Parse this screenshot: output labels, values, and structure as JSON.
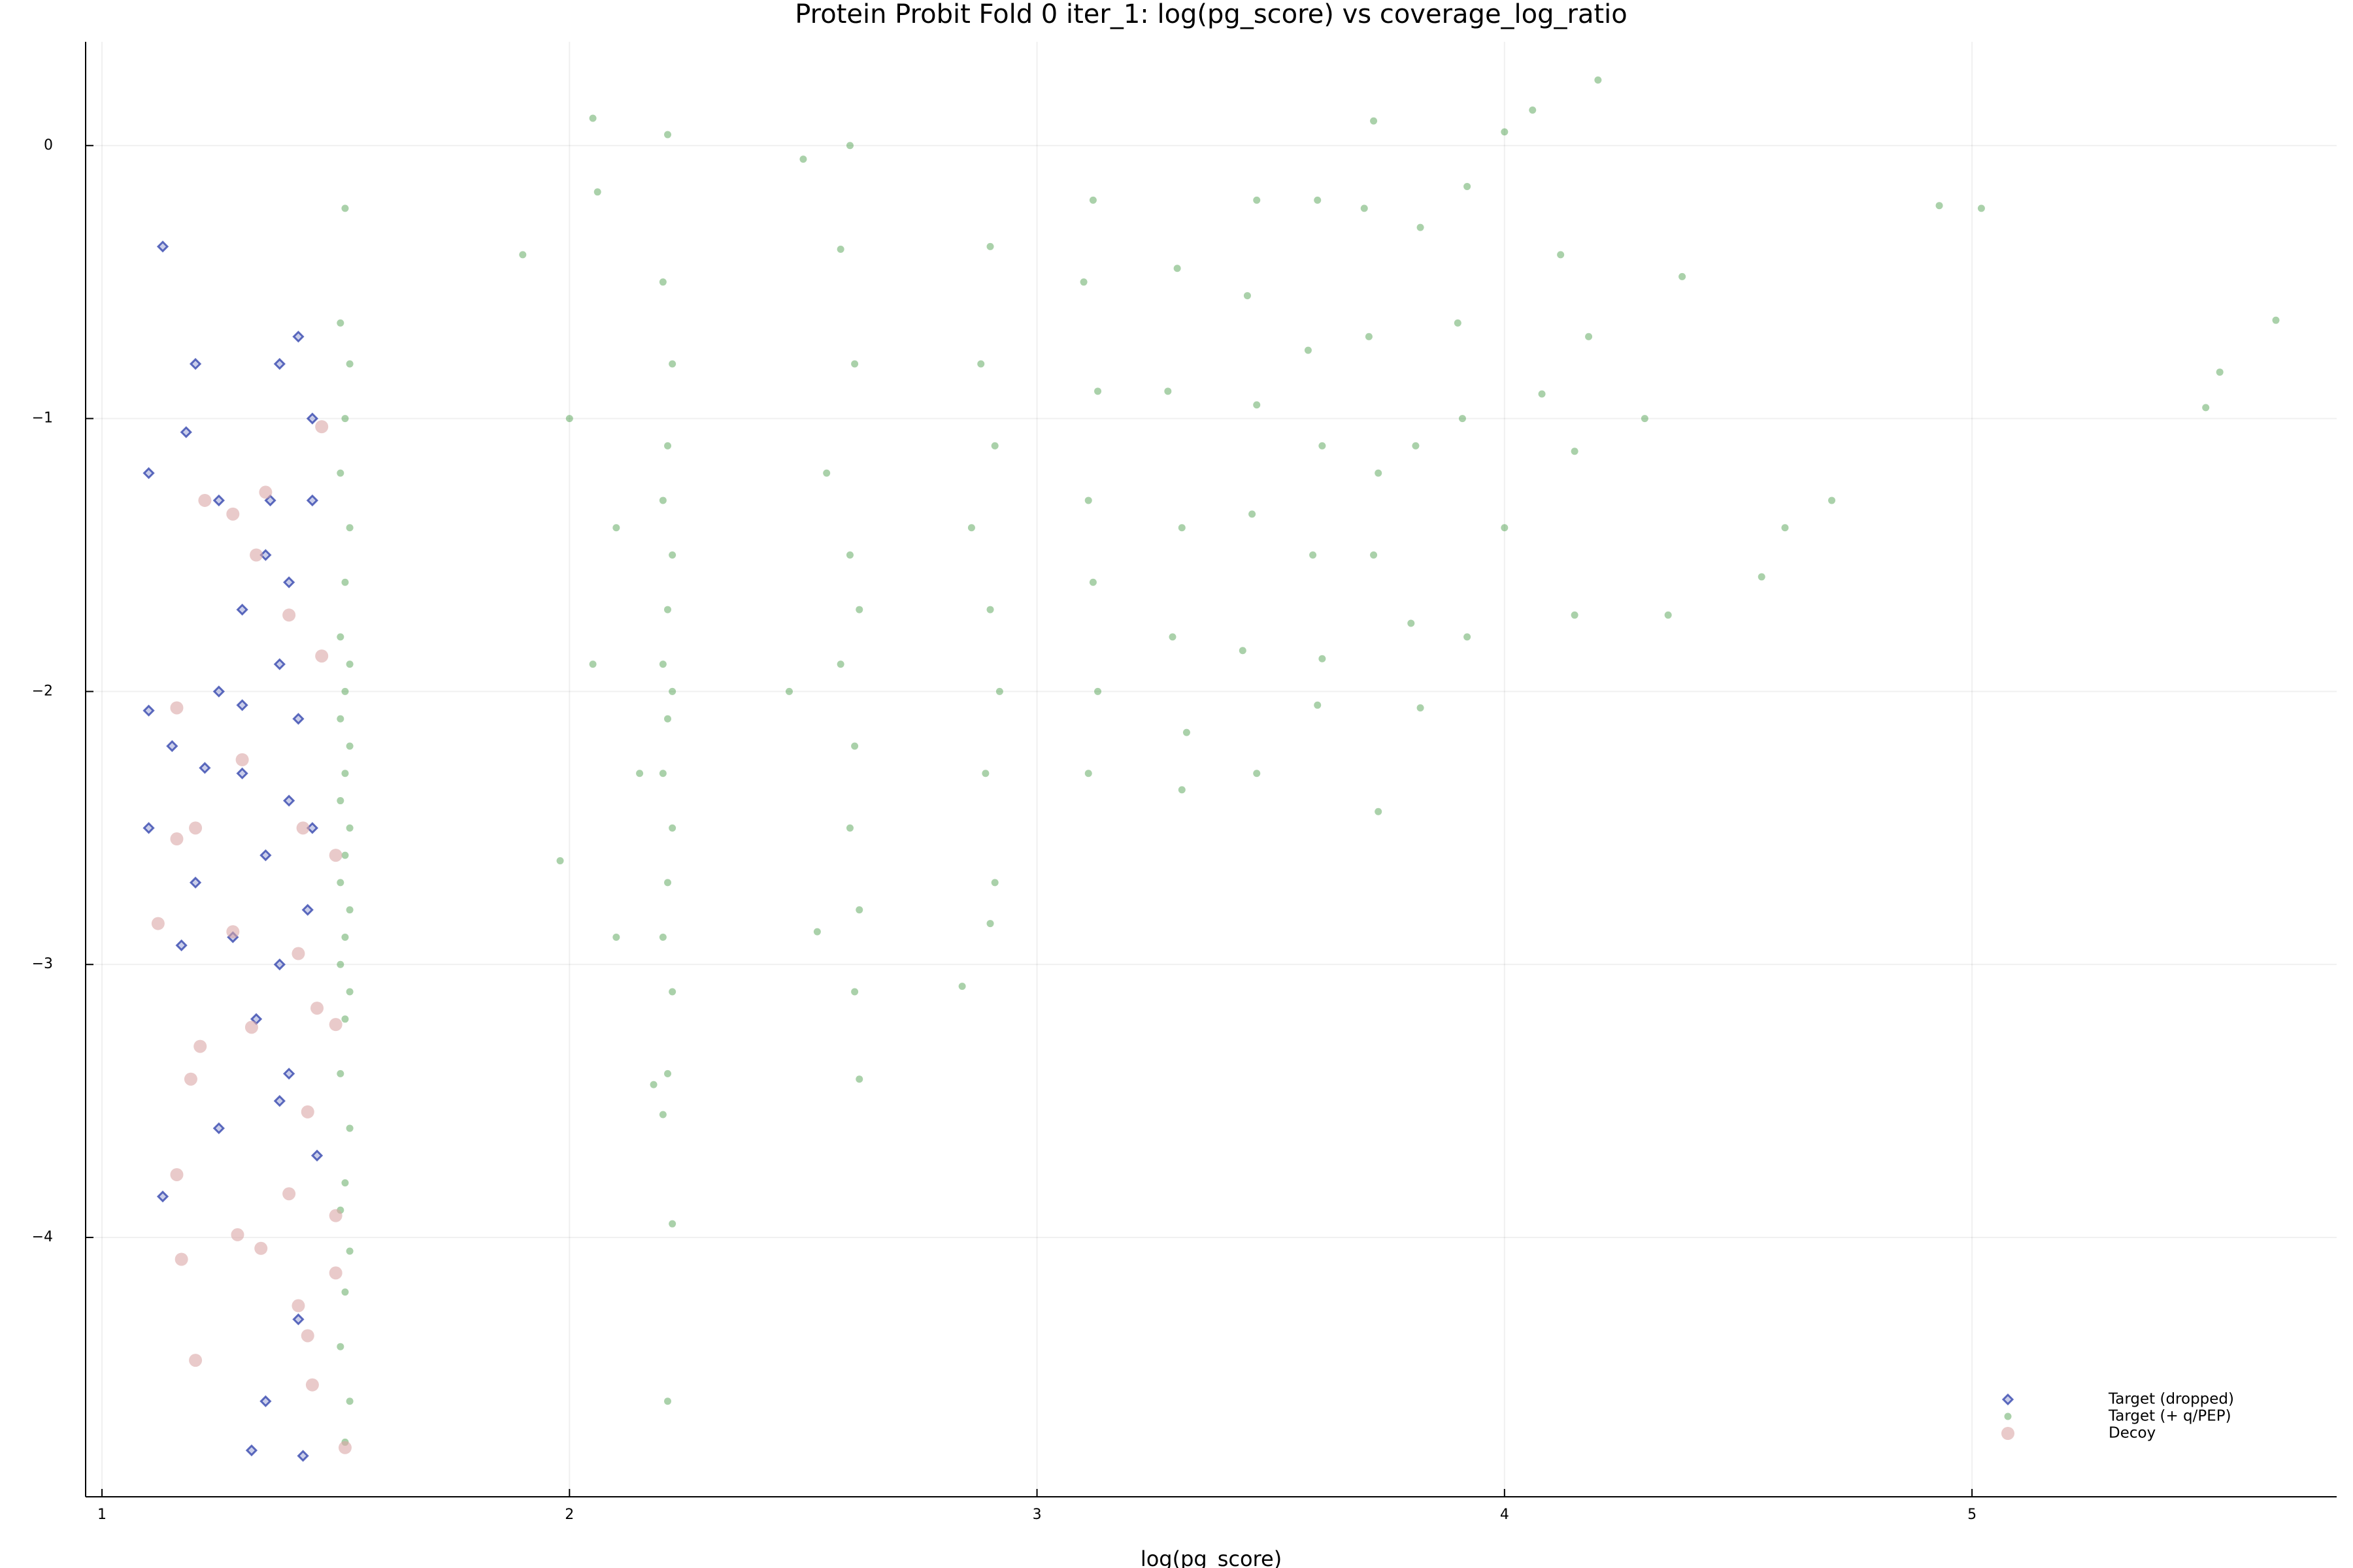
{
  "chart_data": {
    "type": "scatter",
    "title": "Protein Probit Fold 0 iter_1: log(pg_score) vs coverage_log_ratio",
    "xlabel": "log(pg_score)",
    "xlim": [
      0.965,
      5.78
    ],
    "ylim": [
      -4.95,
      0.38
    ],
    "xticks": [
      1,
      2,
      3,
      4,
      5
    ],
    "yticks": [
      {
        "value": -4,
        "label": "−4"
      },
      {
        "value": -3,
        "label": "−3"
      },
      {
        "value": -2,
        "label": "−2"
      },
      {
        "value": -1,
        "label": "−1"
      },
      0
    ],
    "grid": true,
    "legend": "bottom right",
    "series": [
      {
        "name": "Target (dropped)",
        "color": "#2a3caa",
        "marker": "diamond",
        "x": [
          1.13,
          1.2,
          1.18,
          1.1,
          1.25,
          1.38,
          1.42,
          1.35,
          1.4,
          1.45,
          1.3,
          1.38,
          1.42,
          1.25,
          1.15,
          1.1,
          1.3,
          1.4,
          1.35,
          1.45,
          1.2,
          1.28,
          1.38,
          1.44,
          1.17,
          1.33,
          1.4,
          1.25,
          1.13,
          1.38,
          1.46,
          1.42,
          1.35,
          1.43,
          1.32,
          1.1,
          1.22,
          1.36,
          1.45,
          1.3
        ],
        "y": [
          -0.37,
          -0.8,
          -1.05,
          -1.2,
          -1.3,
          -0.8,
          -0.7,
          -1.5,
          -1.6,
          -1.3,
          -1.7,
          -1.9,
          -2.1,
          -2.0,
          -2.2,
          -2.5,
          -2.3,
          -2.4,
          -2.6,
          -2.5,
          -2.7,
          -2.9,
          -3.0,
          -2.8,
          -2.93,
          -3.2,
          -3.4,
          -3.6,
          -3.85,
          -3.5,
          -3.7,
          -4.3,
          -4.6,
          -4.8,
          -4.78,
          -2.07,
          -2.28,
          -1.3,
          -1.0,
          -2.05
        ]
      },
      {
        "name": "Target (+ q/PEP)",
        "color": "#2a8c2a",
        "marker": "circle",
        "x": [
          1.52,
          1.51,
          1.53,
          1.52,
          1.51,
          1.53,
          1.52,
          1.51,
          1.53,
          1.52,
          1.51,
          1.53,
          1.52,
          1.51,
          1.53,
          1.52,
          1.51,
          1.53,
          1.52,
          1.51,
          1.53,
          1.52,
          1.51,
          1.53,
          1.52,
          1.51,
          1.53,
          1.52,
          1.51,
          1.53,
          1.52,
          2.21,
          2.2,
          2.22,
          2.21,
          2.2,
          2.22,
          2.21,
          2.2,
          2.22,
          2.21,
          2.2,
          2.22,
          2.21,
          2.2,
          2.22,
          2.21,
          2.2,
          2.22,
          2.21,
          2.05,
          2.06,
          1.9,
          2.0,
          2.1,
          2.05,
          2.15,
          1.98,
          2.1,
          2.18,
          2.6,
          2.58,
          2.61,
          2.55,
          2.6,
          2.62,
          2.58,
          2.61,
          2.6,
          2.62,
          2.61,
          2.62,
          2.5,
          2.47,
          2.53,
          2.9,
          2.88,
          2.91,
          2.86,
          2.9,
          2.92,
          2.89,
          2.91,
          2.9,
          2.84,
          3.12,
          3.1,
          3.13,
          3.11,
          3.12,
          3.13,
          3.11,
          3.3,
          3.28,
          3.31,
          3.29,
          3.32,
          3.31,
          3.47,
          3.45,
          3.47,
          3.46,
          3.44,
          3.47,
          3.6,
          3.58,
          3.61,
          3.59,
          3.61,
          3.6,
          3.72,
          3.7,
          3.71,
          3.73,
          3.72,
          3.73,
          3.82,
          3.81,
          3.8,
          3.82,
          3.92,
          3.9,
          3.91,
          3.92,
          4.0,
          4.06,
          4.2,
          4.12,
          4.18,
          4.3,
          4.15,
          4.0,
          4.15,
          4.35,
          4.6,
          4.7,
          4.93,
          5.02,
          5.5,
          5.53,
          5.65,
          4.55,
          4.38,
          4.08
        ],
        "y": [
          -0.23,
          -0.65,
          -0.8,
          -1.0,
          -1.2,
          -1.4,
          -1.6,
          -1.8,
          -1.9,
          -2.0,
          -2.1,
          -2.2,
          -2.3,
          -2.4,
          -2.5,
          -2.6,
          -2.7,
          -2.8,
          -2.9,
          -3.0,
          -3.1,
          -3.2,
          -3.4,
          -3.6,
          -3.8,
          -3.9,
          -4.05,
          -4.2,
          -4.4,
          -4.6,
          -4.75,
          0.04,
          -0.5,
          -0.8,
          -1.1,
          -1.3,
          -1.5,
          -1.7,
          -1.9,
          -2.0,
          -2.1,
          -2.3,
          -2.5,
          -2.7,
          -2.9,
          -3.1,
          -3.4,
          -3.55,
          -3.95,
          -4.6,
          0.1,
          -0.17,
          -0.4,
          -1.0,
          -1.4,
          -1.9,
          -2.3,
          -2.62,
          -2.9,
          -3.44,
          0.0,
          -0.38,
          -0.8,
          -1.2,
          -1.5,
          -1.7,
          -1.9,
          -2.2,
          -2.5,
          -2.8,
          -3.1,
          -3.42,
          -0.05,
          -2.0,
          -2.88,
          -0.37,
          -0.8,
          -1.1,
          -1.4,
          -1.7,
          -2.0,
          -2.3,
          -2.7,
          -2.85,
          -3.08,
          -0.2,
          -0.5,
          -0.9,
          -1.3,
          -1.6,
          -2.0,
          -2.3,
          -0.45,
          -0.9,
          -1.4,
          -1.8,
          -2.15,
          -2.36,
          -0.2,
          -0.55,
          -0.95,
          -1.35,
          -1.85,
          -2.3,
          -0.2,
          -0.75,
          -1.1,
          -1.5,
          -1.88,
          -2.05,
          0.09,
          -0.23,
          -0.7,
          -1.2,
          -1.5,
          -2.44,
          -0.3,
          -1.1,
          -1.75,
          -2.06,
          -0.15,
          -0.65,
          -1.0,
          -1.8,
          0.05,
          0.13,
          0.24,
          -0.4,
          -0.7,
          -1.0,
          -1.12,
          -1.4,
          -1.72,
          -1.72,
          -1.4,
          -1.3,
          -0.22,
          -0.23,
          -0.96,
          -0.83,
          -0.64,
          -1.58,
          -0.48,
          -0.91
        ]
      },
      {
        "name": "Decoy",
        "color": "#dba6a6",
        "marker": "circle",
        "x": [
          1.16,
          1.22,
          1.28,
          1.35,
          1.47,
          1.33,
          1.4,
          1.2,
          1.3,
          1.43,
          1.5,
          1.16,
          1.12,
          1.28,
          1.42,
          1.46,
          1.5,
          1.21,
          1.19,
          1.32,
          1.44,
          1.16,
          1.4,
          1.17,
          1.29,
          1.34,
          1.42,
          1.44,
          1.5,
          1.2,
          1.45,
          1.52,
          1.5,
          1.47
        ],
        "y": [
          -2.06,
          -1.3,
          -1.35,
          -1.27,
          -1.03,
          -1.5,
          -1.72,
          -2.5,
          -2.25,
          -2.5,
          -2.6,
          -2.54,
          -2.85,
          -2.88,
          -2.96,
          -3.16,
          -3.22,
          -3.3,
          -3.42,
          -3.23,
          -3.54,
          -3.77,
          -3.84,
          -4.08,
          -3.99,
          -4.04,
          -4.25,
          -4.36,
          -4.13,
          -4.45,
          -4.54,
          -4.77,
          -3.92,
          -1.87
        ]
      }
    ]
  }
}
